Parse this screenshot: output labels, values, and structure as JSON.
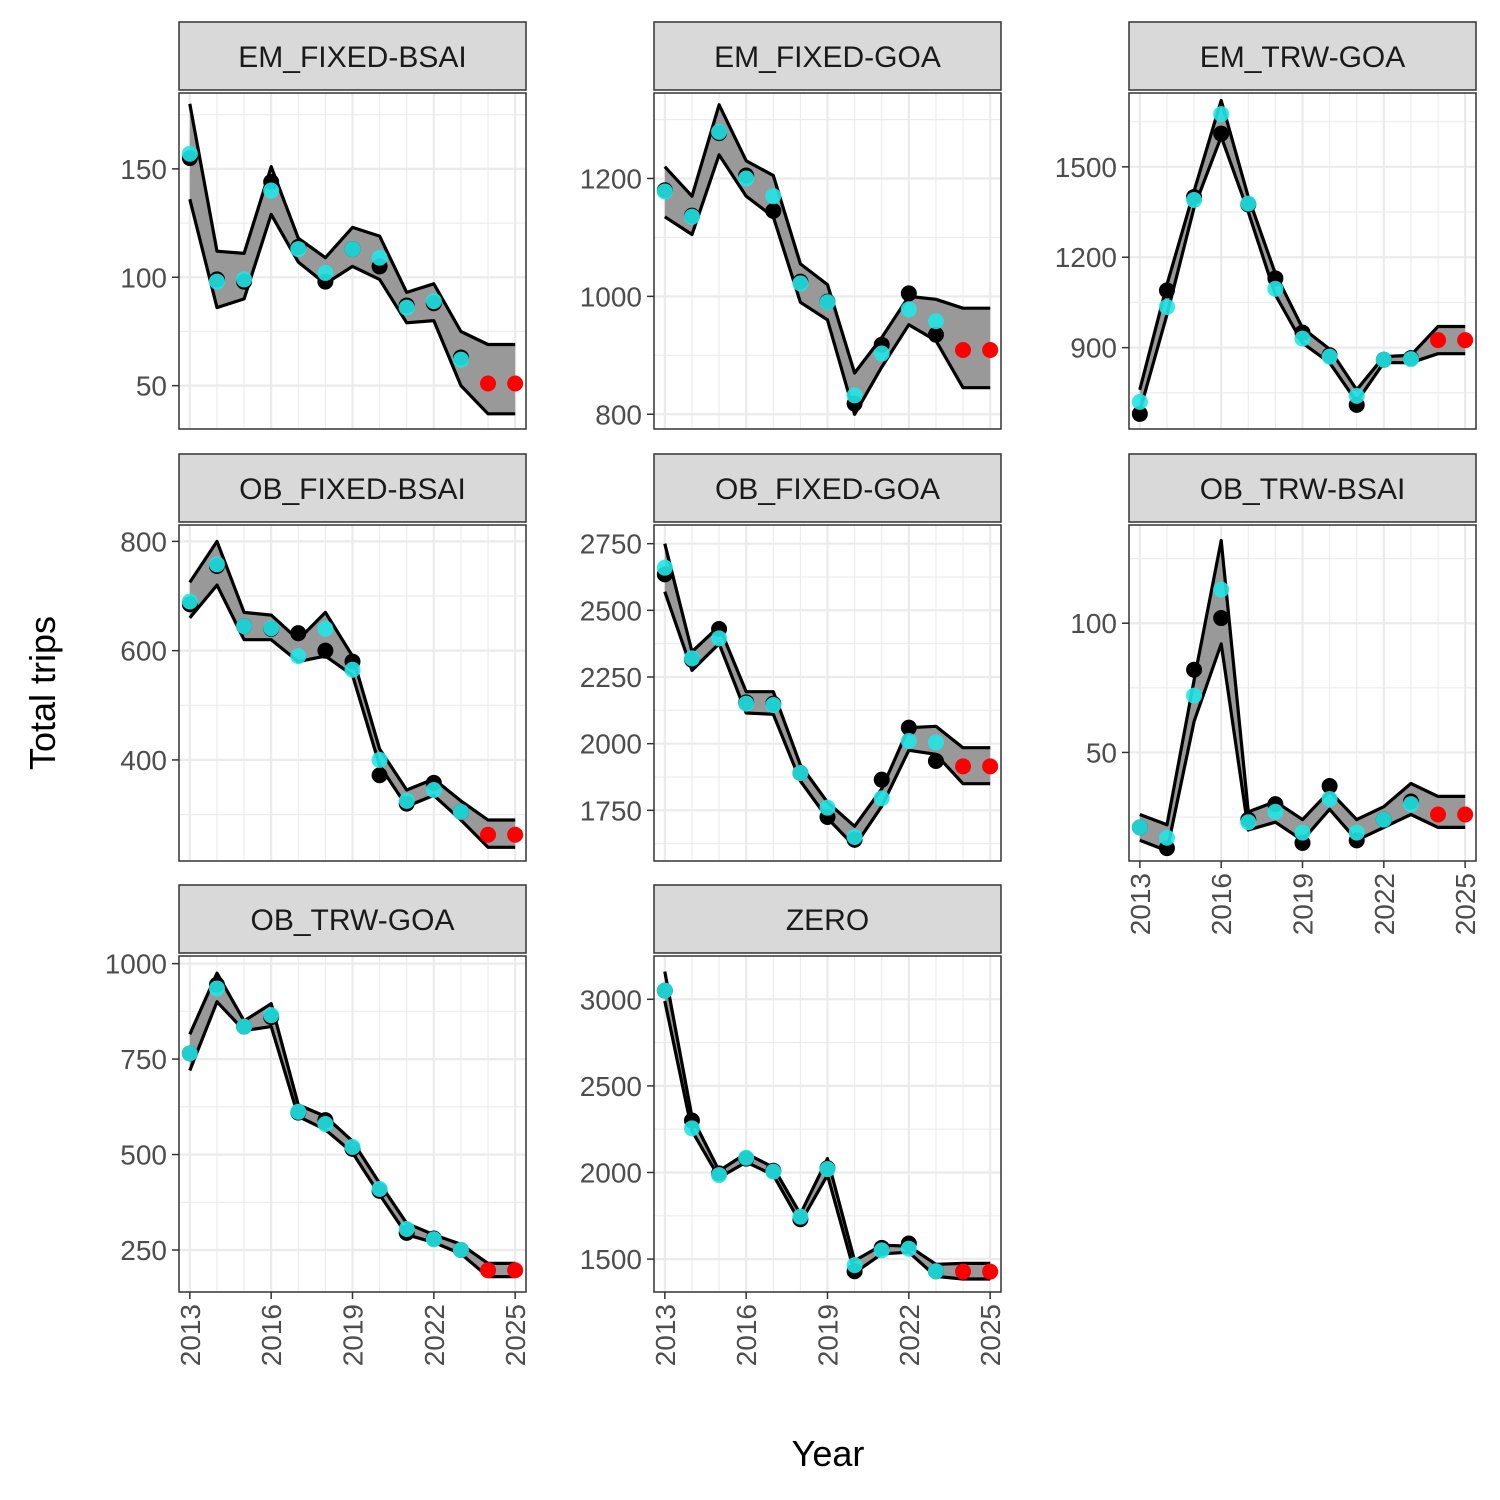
{
  "figure": {
    "xlabel": "Year",
    "ylabel": "Total trips",
    "x_ticks": [
      2013,
      2016,
      2019,
      2022,
      2025
    ],
    "grid": true,
    "colors": {
      "actual": "#000000",
      "model": "#22E5E5",
      "forecast": "#FF0000",
      "band": "#999999",
      "strip": "#D9D9D9",
      "grid": "#EBEBEB"
    }
  },
  "chart_data": [
    {
      "type": "line",
      "title": "EM_FIXED-BSAI",
      "x": [
        2013,
        2014,
        2015,
        2016,
        2017,
        2018,
        2019,
        2020,
        2021,
        2022,
        2023,
        2024,
        2025
      ],
      "ylim": [
        30,
        185
      ],
      "yticks": [
        50,
        100,
        150
      ],
      "actual": [
        155,
        99,
        98,
        144,
        114,
        98,
        113,
        105,
        87,
        88,
        63,
        null,
        null
      ],
      "model": [
        157,
        98,
        99,
        140,
        113,
        102,
        113,
        109,
        86,
        89,
        62,
        null,
        null
      ],
      "forecast": [
        null,
        null,
        null,
        null,
        null,
        null,
        null,
        null,
        null,
        null,
        null,
        51,
        51
      ],
      "band_upper": [
        180,
        112,
        111,
        151,
        118,
        109,
        123,
        119,
        93,
        97,
        75,
        69,
        69
      ],
      "band_lower": [
        136,
        86,
        90,
        129,
        107,
        97,
        105,
        99,
        79,
        80,
        50,
        37,
        37
      ]
    },
    {
      "type": "line",
      "title": "EM_FIXED-GOA",
      "x": [
        2013,
        2014,
        2015,
        2016,
        2017,
        2018,
        2019,
        2020,
        2021,
        2022,
        2023,
        2024,
        2025
      ],
      "ylim": [
        775,
        1345
      ],
      "yticks": [
        800,
        1000,
        1200
      ],
      "actual": [
        1180,
        1137,
        1277,
        1205,
        1145,
        1025,
        991,
        818,
        918,
        1005,
        935,
        null,
        null
      ],
      "model": [
        1178,
        1135,
        1279,
        1200,
        1170,
        1022,
        990,
        832,
        903,
        978,
        958,
        null,
        null
      ],
      "forecast": [
        null,
        null,
        null,
        null,
        null,
        null,
        null,
        null,
        null,
        null,
        null,
        909,
        909
      ],
      "band_upper": [
        1220,
        1170,
        1325,
        1230,
        1205,
        1055,
        1020,
        870,
        930,
        1000,
        995,
        980,
        980
      ],
      "band_lower": [
        1135,
        1105,
        1240,
        1170,
        1135,
        990,
        960,
        800,
        880,
        952,
        925,
        845,
        845
      ]
    },
    {
      "type": "line",
      "title": "EM_TRW-GOA",
      "x": [
        2013,
        2014,
        2015,
        2016,
        2017,
        2018,
        2019,
        2020,
        2021,
        2022,
        2023,
        2024,
        2025
      ],
      "ylim": [
        630,
        1745
      ],
      "yticks": [
        900,
        1200,
        1500
      ],
      "actual": [
        680,
        1090,
        1400,
        1610,
        1375,
        1130,
        950,
        875,
        710,
        860,
        865,
        null,
        null
      ],
      "model": [
        720,
        1035,
        1390,
        1675,
        1378,
        1095,
        930,
        870,
        740,
        860,
        862,
        null,
        null
      ],
      "forecast": [
        null,
        null,
        null,
        null,
        null,
        null,
        null,
        null,
        null,
        null,
        null,
        925,
        925
      ],
      "band_upper": [
        760,
        1110,
        1420,
        1720,
        1400,
        1145,
        965,
        895,
        760,
        870,
        875,
        970,
        970
      ],
      "band_lower": [
        690,
        1010,
        1365,
        1600,
        1350,
        1075,
        915,
        850,
        720,
        850,
        850,
        880,
        880
      ]
    },
    {
      "type": "line",
      "title": "OB_FIXED-BSAI",
      "x": [
        2013,
        2014,
        2015,
        2016,
        2017,
        2018,
        2019,
        2020,
        2021,
        2022,
        2023,
        2024,
        2025
      ],
      "ylim": [
        215,
        830
      ],
      "yticks": [
        400,
        600,
        800
      ],
      "actual": [
        685,
        755,
        645,
        640,
        632,
        600,
        580,
        372,
        320,
        358,
        305,
        null,
        null
      ],
      "model": [
        690,
        758,
        645,
        641,
        590,
        640,
        565,
        400,
        325,
        345,
        305,
        null,
        null
      ],
      "forecast": [
        null,
        null,
        null,
        null,
        null,
        null,
        null,
        null,
        null,
        null,
        null,
        263,
        263
      ],
      "band_upper": [
        725,
        800,
        670,
        665,
        620,
        670,
        590,
        420,
        345,
        365,
        325,
        290,
        290
      ],
      "band_lower": [
        660,
        720,
        620,
        620,
        580,
        590,
        555,
        390,
        315,
        335,
        290,
        240,
        240
      ]
    },
    {
      "type": "line",
      "title": "OB_FIXED-GOA",
      "x": [
        2013,
        2014,
        2015,
        2016,
        2017,
        2018,
        2019,
        2020,
        2021,
        2022,
        2023,
        2024,
        2025
      ],
      "ylim": [
        1560,
        2820
      ],
      "yticks": [
        1750,
        2000,
        2250,
        2500,
        2750
      ],
      "actual": [
        2635,
        2315,
        2430,
        2155,
        2150,
        1890,
        1725,
        1640,
        1865,
        2060,
        1935,
        null,
        null
      ],
      "model": [
        2660,
        2320,
        2395,
        2150,
        2145,
        1890,
        1760,
        1650,
        1795,
        2010,
        2005,
        null,
        null
      ],
      "forecast": [
        null,
        null,
        null,
        null,
        null,
        null,
        null,
        null,
        null,
        null,
        null,
        1915,
        1915
      ],
      "band_upper": [
        2750,
        2345,
        2440,
        2195,
        2195,
        1920,
        1780,
        1690,
        1830,
        2060,
        2065,
        1985,
        1985
      ],
      "band_lower": [
        2570,
        2275,
        2375,
        2115,
        2110,
        1860,
        1720,
        1615,
        1765,
        1975,
        1960,
        1850,
        1850
      ]
    },
    {
      "type": "line",
      "title": "OB_TRW-BSAI",
      "x": [
        2013,
        2014,
        2015,
        2016,
        2017,
        2018,
        2019,
        2020,
        2021,
        2022,
        2023,
        2024,
        2025
      ],
      "ylim": [
        8,
        138
      ],
      "yticks": [
        50,
        100
      ],
      "actual": [
        21,
        13,
        82,
        102,
        24,
        30,
        15,
        37,
        16,
        24,
        31,
        null,
        null
      ],
      "model": [
        21,
        17,
        72,
        113,
        23,
        27,
        19,
        32,
        19,
        24,
        30,
        null,
        null
      ],
      "forecast": [
        null,
        null,
        null,
        null,
        null,
        null,
        null,
        null,
        null,
        null,
        null,
        26,
        26
      ],
      "band_upper": [
        26,
        22,
        78,
        132,
        27,
        31,
        24,
        35,
        24,
        29,
        38,
        33,
        33
      ],
      "band_lower": [
        16,
        12,
        62,
        92,
        20,
        23,
        16,
        28,
        16,
        21,
        26,
        21,
        21
      ]
    },
    {
      "type": "line",
      "title": "OB_TRW-GOA",
      "x": [
        2013,
        2014,
        2015,
        2016,
        2017,
        2018,
        2019,
        2020,
        2021,
        2022,
        2023,
        2024,
        2025
      ],
      "ylim": [
        140,
        1020
      ],
      "yticks": [
        250,
        500,
        750,
        1000
      ],
      "actual": [
        765,
        945,
        835,
        860,
        610,
        590,
        515,
        405,
        295,
        280,
        250,
        null,
        null
      ],
      "model": [
        765,
        935,
        835,
        865,
        612,
        580,
        520,
        410,
        305,
        278,
        250,
        null,
        null
      ],
      "forecast": [
        null,
        null,
        null,
        null,
        null,
        null,
        null,
        null,
        null,
        null,
        null,
        197,
        197
      ],
      "band_upper": [
        815,
        975,
        850,
        895,
        630,
        600,
        535,
        425,
        320,
        290,
        265,
        215,
        215
      ],
      "band_lower": [
        720,
        900,
        825,
        835,
        600,
        565,
        505,
        395,
        290,
        270,
        240,
        180,
        180
      ]
    },
    {
      "type": "line",
      "title": "ZERO",
      "x": [
        2013,
        2014,
        2015,
        2016,
        2017,
        2018,
        2019,
        2020,
        2021,
        2022,
        2023,
        2024,
        2025
      ],
      "ylim": [
        1310,
        3250
      ],
      "yticks": [
        1500,
        2000,
        2500,
        3000
      ],
      "actual": [
        3050,
        2300,
        1995,
        2080,
        2010,
        1730,
        2025,
        1430,
        1565,
        1590,
        1430,
        null,
        null
      ],
      "model": [
        3050,
        2255,
        1985,
        2085,
        2005,
        1745,
        2020,
        1465,
        1550,
        1560,
        1430,
        null,
        null
      ],
      "forecast": [
        null,
        null,
        null,
        null,
        null,
        null,
        null,
        null,
        null,
        null,
        null,
        1428,
        1428
      ],
      "band_upper": [
        3160,
        2320,
        2010,
        2110,
        2030,
        1760,
        2080,
        1490,
        1580,
        1575,
        1470,
        1475,
        1475
      ],
      "band_lower": [
        2990,
        2240,
        1970,
        2060,
        1985,
        1710,
        1985,
        1420,
        1530,
        1540,
        1400,
        1385,
        1385
      ]
    }
  ]
}
